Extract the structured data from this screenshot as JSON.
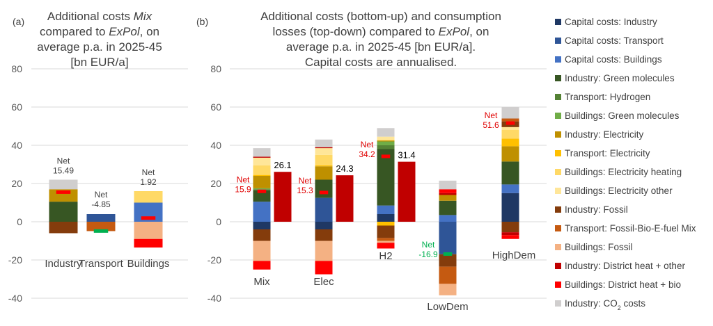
{
  "panel_a_label": "(a)",
  "panel_b_label": "(b)",
  "title_a_lines": [
    [
      {
        "t": "Additional costs "
      },
      {
        "t": "Mix",
        "i": true
      }
    ],
    [
      {
        "t": "compared to "
      },
      {
        "t": "ExPol",
        "i": true
      },
      {
        "t": ", on"
      }
    ],
    [
      {
        "t": "average p.a. in 2025-45"
      }
    ],
    [
      {
        "t": "[bn EUR/a]"
      }
    ]
  ],
  "title_b_lines": [
    [
      {
        "t": "Additional costs (bottom-up) and consumption"
      }
    ],
    [
      {
        "t": "losses (top-down) compared to "
      },
      {
        "t": "ExPol",
        "i": true
      },
      {
        "t": ", on"
      }
    ],
    [
      {
        "t": "average p.a. in 2025-45 [bn EUR/a]."
      }
    ],
    [
      {
        "t": "Capital costs are annualised."
      }
    ]
  ],
  "legend": [
    {
      "label": "Capital costs: Industry",
      "color": "#1f3864"
    },
    {
      "label": "Capital costs: Transport",
      "color": "#2f5597"
    },
    {
      "label": "Capital costs: Buildings",
      "color": "#4472c4"
    },
    {
      "label": "Industry: Green molecules",
      "color": "#375623"
    },
    {
      "label": "Transport: Hydrogen",
      "color": "#548235"
    },
    {
      "label": "Buildings: Green molecules",
      "color": "#70ad47"
    },
    {
      "label": "Industry: Electricity",
      "color": "#bf9000"
    },
    {
      "label": "Transport: Electricity",
      "color": "#ffc000"
    },
    {
      "label": "Buildings: Electricity heating",
      "color": "#ffd966"
    },
    {
      "label": "Buildings: Electricity other",
      "color": "#ffe699"
    },
    {
      "label": "Industry: Fossil",
      "color": "#843c0c"
    },
    {
      "label": "Transport: Fossil-Bio-E-fuel Mix",
      "color": "#c55a11"
    },
    {
      "label": "Buildings: Fossil",
      "color": "#f4b183"
    },
    {
      "label": "Industry: District heat + other",
      "color": "#c00000"
    },
    {
      "label": "Buildings: District heat + bio",
      "color": "#ff0000"
    },
    {
      "label": "Industry: CO₂ costs",
      "color": "#d0cece",
      "html": "Industry: CO<tspan baseline-shift='sub' font-size='9'>2</tspan> costs"
    }
  ],
  "chart_data": [
    {
      "type": "bar",
      "stacked": true,
      "ylim": [
        -40,
        80
      ],
      "yticks": [
        -40,
        -20,
        0,
        20,
        40,
        60,
        80
      ],
      "grid": true,
      "categories": [
        "Industry",
        "Transport",
        "Buildings"
      ],
      "stacks": [
        {
          "category": "Industry",
          "net": 15.49,
          "net_text": "Net\n15.49",
          "net_color": "#404040",
          "pos": [
            [
              "#375623",
              10.5
            ],
            [
              "#bf9000",
              6.5
            ],
            [
              "#d0cece",
              5.0
            ]
          ],
          "neg": [
            [
              "#843c0c",
              -6.0
            ]
          ]
        },
        {
          "category": "Transport",
          "net": -4.85,
          "net_text": "Net\n-4.85",
          "net_color": "#404040",
          "pos": [
            [
              "#2f5597",
              4.0
            ]
          ],
          "neg": [
            [
              "#c55a11",
              -4.9
            ]
          ],
          "net_marker_color": "#00b050"
        },
        {
          "category": "Buildings",
          "net": 1.92,
          "net_text": "Net\n1.92",
          "net_color": "#404040",
          "pos": [
            [
              "#4472c4",
              10.0
            ],
            [
              "#ffd966",
              6.0
            ]
          ],
          "neg": [
            [
              "#f4b183",
              -9.0
            ],
            [
              "#ff0000",
              -4.5
            ]
          ]
        }
      ]
    },
    {
      "type": "bar",
      "stacked": true,
      "ylim": [
        -40,
        80
      ],
      "yticks": [
        -40,
        -20,
        0,
        20,
        40,
        60,
        80
      ],
      "grid": true,
      "categories": [
        "Mix",
        "Elec",
        "H2",
        "LowDem",
        "HighDem"
      ],
      "stacks": [
        {
          "category": "Mix",
          "net": 15.9,
          "net_text": "Net\n15.9",
          "net_color": "#e00000",
          "pos": [
            [
              "#4472c4",
              10.5
            ],
            [
              "#375623",
              6.0
            ],
            [
              "#548235",
              0.5
            ],
            [
              "#70ad47",
              0.5
            ],
            [
              "#bf9000",
              6.5
            ],
            [
              "#ffc000",
              0.5
            ],
            [
              "#ffd966",
              5.0
            ],
            [
              "#ffe699",
              4.0
            ],
            [
              "#c00000",
              0.5
            ],
            [
              "#d0cece",
              4.5
            ]
          ],
          "neg": [
            [
              "#1f3864",
              -4.0
            ],
            [
              "#843c0c",
              -6.0
            ],
            [
              "#f4b183",
              -10.5
            ],
            [
              "#ff0000",
              -4.5
            ]
          ],
          "consumption": 26.1
        },
        {
          "category": "Elec",
          "net": 15.3,
          "net_text": "Net\n15.3",
          "net_color": "#e00000",
          "pos": [
            [
              "#2f5597",
              12.5
            ],
            [
              "#375623",
              9.5
            ],
            [
              "#bf9000",
              7.0
            ],
            [
              "#ffc000",
              0.5
            ],
            [
              "#ffd966",
              5.5
            ],
            [
              "#ffe699",
              3.5
            ],
            [
              "#c00000",
              0.5
            ],
            [
              "#d0cece",
              4.0
            ]
          ],
          "neg": [
            [
              "#1f3864",
              -4.0
            ],
            [
              "#843c0c",
              -6.0
            ],
            [
              "#f4b183",
              -10.5
            ],
            [
              "#ff0000",
              -7.0
            ]
          ],
          "consumption": 24.3
        },
        {
          "category": "H2",
          "net": 34.2,
          "net_text": "Net\n34.2",
          "net_color": "#e00000",
          "pos": [
            [
              "#1f3864",
              4.0
            ],
            [
              "#4472c4",
              4.5
            ],
            [
              "#375623",
              29.5
            ],
            [
              "#548235",
              2.0
            ],
            [
              "#70ad47",
              2.0
            ],
            [
              "#bf9000",
              0.5
            ],
            [
              "#ffd966",
              0.5
            ],
            [
              "#ffe699",
              1.5
            ],
            [
              "#d0cece",
              4.5
            ]
          ],
          "neg": [
            [
              "#ffc000",
              -2.0
            ],
            [
              "#843c0c",
              -6.5
            ],
            [
              "#c55a11",
              -1.5
            ],
            [
              "#f4b183",
              -1.0
            ],
            [
              "#ff0000",
              -3.0
            ]
          ],
          "consumption": 31.4
        },
        {
          "category": "LowDem",
          "net": -16.9,
          "net_text": "Net\n-16.9",
          "net_color": "#00b050",
          "pos": [
            [
              "#4472c4",
              3.5
            ],
            [
              "#375623",
              7.5
            ],
            [
              "#bf9000",
              3.0
            ],
            [
              "#c00000",
              1.0
            ],
            [
              "#ff0000",
              2.0
            ],
            [
              "#d0cece",
              4.5
            ]
          ],
          "neg": [
            [
              "#2f5597",
              -17.0
            ],
            [
              "#843c0c",
              -6.5
            ],
            [
              "#c55a11",
              -9.0
            ],
            [
              "#f4b183",
              -6.0
            ]
          ]
        },
        {
          "category": "HighDem",
          "net": 51.6,
          "net_text": "Net\n51.6",
          "net_color": "#e00000",
          "pos": [
            [
              "#1f3864",
              15.0
            ],
            [
              "#4472c4",
              4.5
            ],
            [
              "#375623",
              12.0
            ],
            [
              "#bf9000",
              8.0
            ],
            [
              "#ffc000",
              4.0
            ],
            [
              "#ffd966",
              4.5
            ],
            [
              "#ffe699",
              1.5
            ],
            [
              "#843c0c",
              3.0
            ],
            [
              "#c55a11",
              1.5
            ],
            [
              "#d0cece",
              6.0
            ]
          ],
          "neg": [
            [
              "#843c0c",
              -5.5
            ],
            [
              "#c00000",
              -1.5
            ],
            [
              "#ff0000",
              -2.0
            ]
          ]
        }
      ]
    }
  ]
}
